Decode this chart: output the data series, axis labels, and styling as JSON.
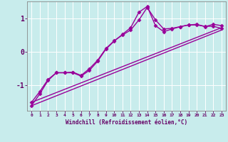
{
  "background_color": "#c8ecec",
  "line_color": "#990099",
  "grid_color": "#aadddd",
  "xlabel": "Windchill (Refroidissement éolien,°C)",
  "xlabel_color": "#660066",
  "yticks": [
    -1,
    0,
    1
  ],
  "xlim": [
    -0.5,
    23.5
  ],
  "ylim": [
    -1.75,
    1.5
  ],
  "series": [
    {
      "x": [
        0,
        1,
        2,
        3,
        4,
        5,
        6,
        7,
        8,
        9,
        10,
        11,
        12,
        13,
        14,
        15,
        16,
        17,
        18,
        19,
        20,
        21,
        22,
        23
      ],
      "y": [
        -1.6,
        -1.25,
        -0.85,
        -0.62,
        -0.62,
        -0.62,
        -0.72,
        -0.55,
        -0.28,
        0.08,
        0.32,
        0.52,
        0.72,
        1.18,
        1.35,
        0.78,
        0.6,
        0.68,
        0.75,
        0.8,
        0.82,
        0.75,
        0.82,
        0.78
      ],
      "marker": "D",
      "markersize": 2.5,
      "linewidth": 1.0
    },
    {
      "x": [
        0,
        1,
        2,
        3,
        4,
        5,
        6,
        7,
        8,
        9,
        10,
        11,
        12,
        13,
        14,
        15,
        16,
        17,
        18,
        19,
        20,
        21,
        22,
        23
      ],
      "y": [
        -1.5,
        -1.18,
        -0.82,
        -0.62,
        -0.62,
        -0.6,
        -0.7,
        -0.5,
        -0.25,
        0.1,
        0.33,
        0.5,
        0.65,
        0.95,
        1.32,
        0.95,
        0.68,
        0.7,
        0.75,
        0.8,
        0.8,
        0.76,
        0.76,
        0.7
      ],
      "marker": "D",
      "markersize": 2.5,
      "linewidth": 1.0
    },
    {
      "x": [
        0,
        23
      ],
      "y": [
        -1.6,
        0.65
      ],
      "marker": null,
      "linewidth": 1.0
    },
    {
      "x": [
        0,
        23
      ],
      "y": [
        -1.5,
        0.72
      ],
      "marker": null,
      "linewidth": 1.0
    }
  ]
}
